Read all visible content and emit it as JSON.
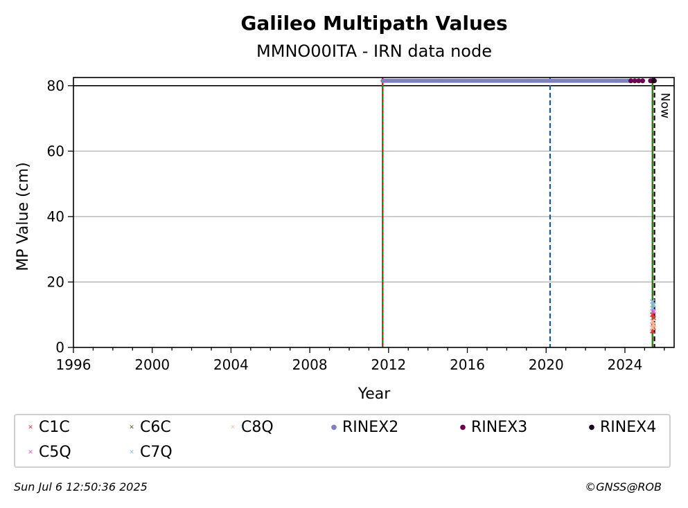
{
  "chart_data": {
    "type": "scatter",
    "title": "Galileo Multipath Values",
    "subtitle": "MMNO00ITA - IRN data node",
    "xlabel": "Year",
    "ylabel": "MP Value (cm)",
    "xlim": [
      1996,
      2026.5
    ],
    "ylim": [
      0,
      82.5
    ],
    "x_ticks": [
      1996,
      2000,
      2004,
      2008,
      2012,
      2016,
      2020,
      2024
    ],
    "x_tick_labels": [
      "1996",
      "2000",
      "2004",
      "2008",
      "2012",
      "2016",
      "2020",
      "2024"
    ],
    "y_ticks": [
      0,
      20,
      40,
      60,
      80
    ],
    "y_tick_labels": [
      "0",
      "20",
      "40",
      "60",
      "80"
    ],
    "grid": "horizontal",
    "now_label": "Now",
    "reference_lines": [
      {
        "x": 2011.7,
        "style": "green-red-dashed"
      },
      {
        "x": 2020.2,
        "style": "blue-dashed"
      },
      {
        "x": 2025.4,
        "style": "green-red-dashed"
      },
      {
        "x": 2025.5,
        "style": "black-dashed"
      }
    ],
    "series": [
      {
        "name": "C1C",
        "marker": "x",
        "color": "#e8352d",
        "points": [
          [
            2025.4,
            5
          ],
          [
            2025.4,
            7
          ],
          [
            2025.45,
            9
          ],
          [
            2025.4,
            10
          ],
          [
            2025.45,
            6
          ]
        ]
      },
      {
        "name": "C5Q",
        "marker": "x",
        "color": "#e85ae8",
        "points": [
          [
            2025.4,
            8
          ],
          [
            2025.45,
            11
          ]
        ]
      },
      {
        "name": "C6C",
        "marker": "x",
        "color": "#4a6b2a",
        "points": [
          [
            2025.45,
            13
          ]
        ]
      },
      {
        "name": "C7Q",
        "marker": "x",
        "color": "#8fbde0",
        "points": [
          [
            2025.4,
            12
          ],
          [
            2025.45,
            13
          ],
          [
            2025.4,
            14
          ]
        ]
      },
      {
        "name": "C8Q",
        "marker": "x",
        "color": "#f5c2a0",
        "points": [
          [
            2025.4,
            6
          ],
          [
            2025.45,
            7
          ],
          [
            2025.4,
            8
          ]
        ]
      },
      {
        "name": "RINEX2",
        "marker": "o",
        "color": "#8080c0",
        "x_range": [
          2011.7,
          2024.3
        ],
        "y": 81.5
      },
      {
        "name": "RINEX3",
        "marker": "o",
        "color": "#6b0050",
        "points": [
          [
            2024.3,
            81.5
          ],
          [
            2024.5,
            81.5
          ],
          [
            2024.7,
            81.5
          ],
          [
            2024.9,
            81.5
          ],
          [
            2025.3,
            81.5
          ],
          [
            2025.4,
            81.5
          ],
          [
            2025.5,
            81.5
          ]
        ]
      },
      {
        "name": "RINEX4",
        "marker": "o",
        "color": "#1a0020",
        "points": [
          [
            2025.45,
            81.5
          ]
        ]
      }
    ],
    "legend_position": "bottom"
  },
  "legend": {
    "items": [
      {
        "label": "C1C",
        "marker": "x",
        "color": "#e8352d"
      },
      {
        "label": "C6C",
        "marker": "x",
        "color": "#4a6b2a"
      },
      {
        "label": "C8Q",
        "marker": "x",
        "color": "#f5c2a0"
      },
      {
        "label": "RINEX2",
        "marker": "o",
        "color": "#8080c0"
      },
      {
        "label": "RINEX3",
        "marker": "o",
        "color": "#6b0050"
      },
      {
        "label": "RINEX4",
        "marker": "o",
        "color": "#1a0020"
      },
      {
        "label": "C5Q",
        "marker": "x",
        "color": "#e85ae8"
      },
      {
        "label": "C7Q",
        "marker": "x",
        "color": "#8fbde0"
      }
    ]
  },
  "footer": {
    "timestamp": "Sun Jul  6 12:50:36 2025",
    "credit": "©GNSS@ROB"
  }
}
